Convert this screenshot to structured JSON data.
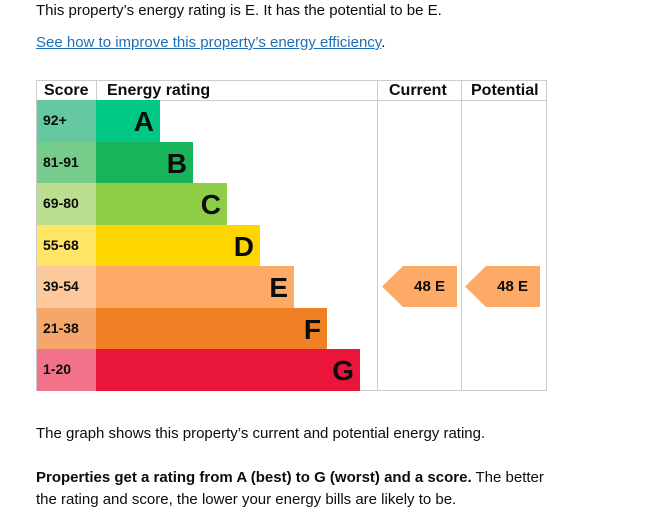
{
  "intro": "This property’s energy rating is E. It has the potential to be E.",
  "link": {
    "text": "See how to improve this property’s energy efficiency",
    "suffix": "."
  },
  "table": {
    "headers": {
      "score": "Score",
      "rating": "Energy rating",
      "current": "Current",
      "potential": "Potential"
    },
    "rows": [
      {
        "score": "92+",
        "letter": "A",
        "bar": "#00c781",
        "bg": "#64c9a0"
      },
      {
        "score": "81-91",
        "letter": "B",
        "bar": "#19b459",
        "bg": "#75cc8b"
      },
      {
        "score": "69-80",
        "letter": "C",
        "bar": "#8dce46",
        "bg": "#bbde90"
      },
      {
        "score": "55-68",
        "letter": "D",
        "bar": "#ffd500",
        "bg": "#ffe566"
      },
      {
        "score": "39-54",
        "letter": "E",
        "bar": "#fcaa65",
        "bg": "#fdc89c"
      },
      {
        "score": "21-38",
        "letter": "F",
        "bar": "#ef8023",
        "bg": "#f5a66b"
      },
      {
        "score": "1-20",
        "letter": "G",
        "bar": "#e9153b",
        "bg": "#f27389"
      }
    ],
    "current": {
      "value": "48 E",
      "score": 48,
      "band": "E"
    },
    "potential": {
      "value": "48 E",
      "score": 48,
      "band": "E"
    }
  },
  "graph_text": "The graph shows this property’s current and potential energy rating.",
  "explain": {
    "bold": "Properties get a rating from A (best) to G (worst) and a score.",
    "rest": " The better the rating and score, the lower your energy bills are likely to be."
  }
}
